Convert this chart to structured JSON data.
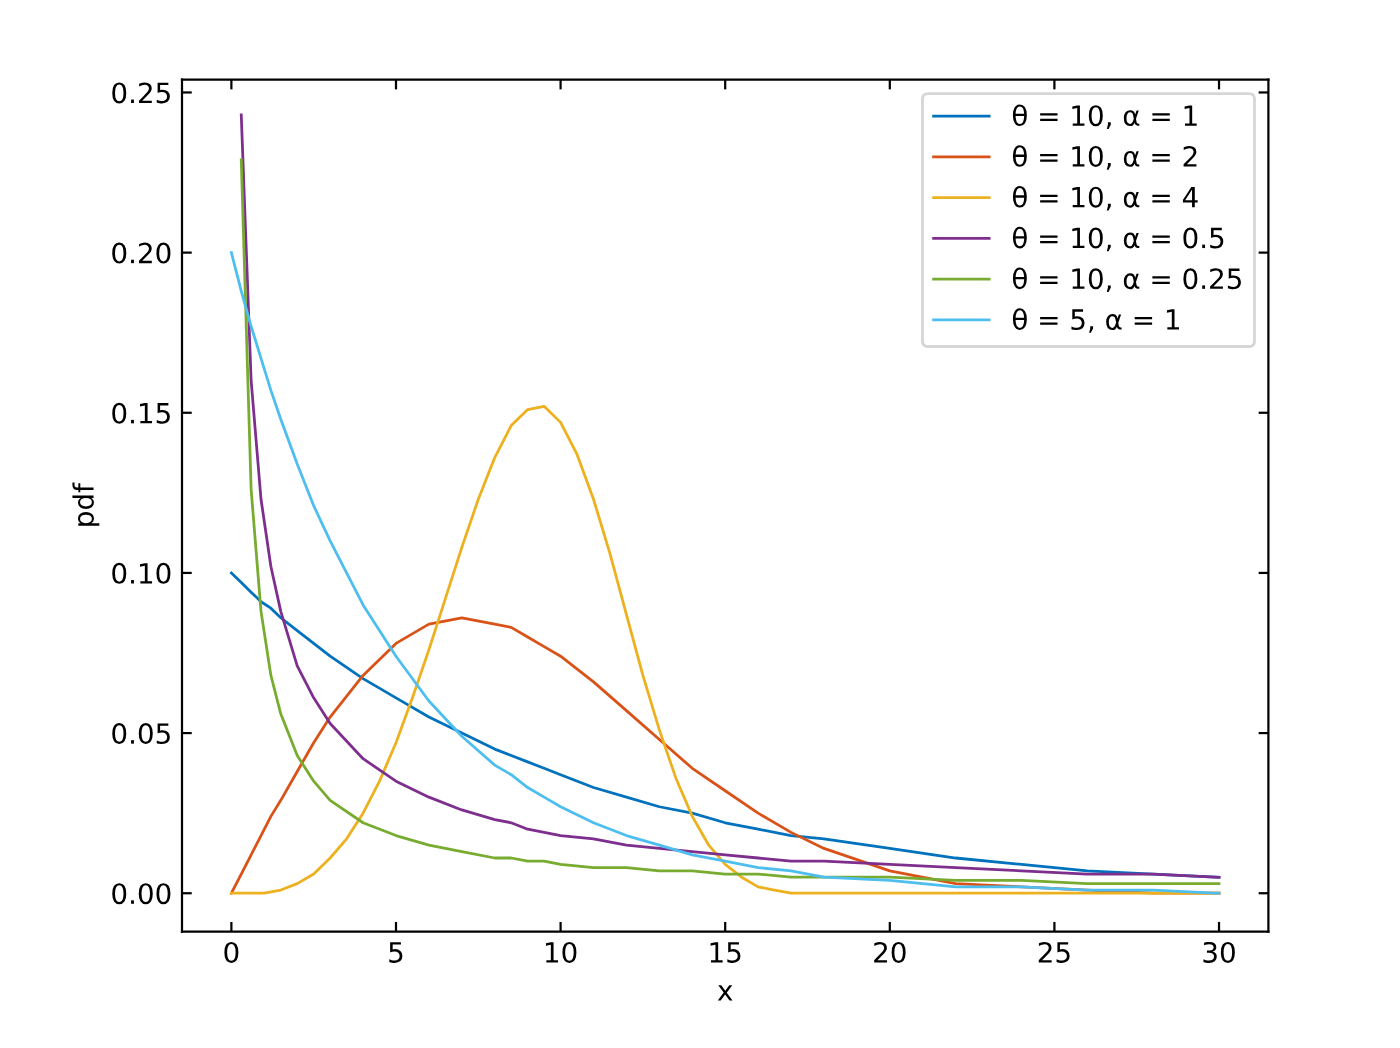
{
  "chart_data": {
    "type": "line",
    "xlabel": "x",
    "ylabel": "pdf",
    "x": [
      0,
      0.3,
      0.6,
      0.9,
      1.2,
      1.5,
      2,
      2.5,
      3,
      4,
      5,
      6,
      7,
      8,
      8.5,
      9,
      9.5,
      10,
      11,
      12,
      13,
      14,
      15,
      16,
      17,
      18,
      20,
      22,
      24,
      26,
      28,
      30
    ],
    "series": [
      {
        "name": "θ = 10, α = 1",
        "color": "#0072bd",
        "values": [
          0.1,
          0.097,
          0.094,
          0.091,
          0.089,
          0.086,
          0.082,
          0.078,
          0.074,
          0.067,
          0.061,
          0.055,
          0.05,
          0.045,
          0.043,
          0.041,
          0.039,
          0.037,
          0.033,
          0.03,
          0.027,
          0.025,
          0.022,
          0.02,
          0.018,
          0.017,
          0.014,
          0.011,
          0.009,
          0.007,
          0.006,
          0.005
        ]
      },
      {
        "name": "θ = 10, α = 2",
        "color": "#d95319",
        "values": [
          0.0,
          0.006,
          0.012,
          0.018,
          0.024,
          0.029,
          0.038,
          0.047,
          0.055,
          0.068,
          0.078,
          0.084,
          0.086,
          0.084,
          0.083,
          0.08,
          0.077,
          0.074,
          0.066,
          0.057,
          0.048,
          0.039,
          0.032,
          0.025,
          0.019,
          0.014,
          0.007,
          0.003,
          0.002,
          0.001,
          0.0,
          0.0
        ]
      },
      {
        "name": "θ = 10, α = 4",
        "color": "#edb120",
        "x": [
          0,
          0.5,
          1,
          1.5,
          2,
          2.5,
          3,
          3.5,
          4,
          4.5,
          5,
          5.5,
          6,
          6.5,
          7,
          7.5,
          8,
          8.5,
          9,
          9.5,
          10,
          10.5,
          11,
          11.5,
          12,
          12.5,
          13,
          13.5,
          14,
          14.5,
          15,
          15.5,
          16,
          16.5,
          17,
          18,
          20,
          22,
          24,
          26,
          28,
          30
        ],
        "values": [
          0.0,
          0.0,
          0.0,
          0.001,
          0.003,
          0.006,
          0.011,
          0.017,
          0.025,
          0.035,
          0.047,
          0.061,
          0.076,
          0.092,
          0.108,
          0.123,
          0.136,
          0.146,
          0.151,
          0.152,
          0.147,
          0.137,
          0.123,
          0.106,
          0.087,
          0.068,
          0.051,
          0.036,
          0.024,
          0.015,
          0.009,
          0.005,
          0.002,
          0.001,
          0.0,
          0.0,
          0.0,
          0.0,
          0.0,
          0.0,
          0.0,
          0.0
        ]
      },
      {
        "name": "θ = 10, α = 0.5",
        "color": "#7e2f8e",
        "values": [
          null,
          0.243,
          0.16,
          0.123,
          0.102,
          0.088,
          0.071,
          0.061,
          0.053,
          0.042,
          0.035,
          0.03,
          0.026,
          0.023,
          0.022,
          0.02,
          0.019,
          0.018,
          0.017,
          0.015,
          0.014,
          0.013,
          0.012,
          0.011,
          0.01,
          0.01,
          0.009,
          0.008,
          0.007,
          0.006,
          0.006,
          0.005
        ]
      },
      {
        "name": "θ = 10, α = 0.25",
        "color": "#77ac30",
        "values": [
          null,
          0.229,
          0.126,
          0.088,
          0.068,
          0.056,
          0.043,
          0.035,
          0.029,
          0.022,
          0.018,
          0.015,
          0.013,
          0.011,
          0.011,
          0.01,
          0.01,
          0.009,
          0.008,
          0.008,
          0.007,
          0.007,
          0.006,
          0.006,
          0.005,
          0.005,
          0.005,
          0.004,
          0.004,
          0.003,
          0.003,
          0.003
        ]
      },
      {
        "name": "θ = 5, α = 1",
        "color": "#4dbeee",
        "values": [
          0.2,
          0.188,
          0.177,
          0.167,
          0.157,
          0.148,
          0.134,
          0.121,
          0.11,
          0.09,
          0.074,
          0.06,
          0.049,
          0.04,
          0.037,
          0.033,
          0.03,
          0.027,
          0.022,
          0.018,
          0.015,
          0.012,
          0.01,
          0.008,
          0.007,
          0.005,
          0.004,
          0.002,
          0.002,
          0.001,
          0.001,
          0.0
        ]
      }
    ],
    "xlim": [
      -1.5,
      31.5
    ],
    "ylim": [
      -0.012,
      0.254
    ],
    "xticks": [
      0,
      5,
      10,
      15,
      20,
      25,
      30
    ],
    "yticks": [
      {
        "value": 0,
        "label": "0.00"
      },
      {
        "value": 0.05,
        "label": "0.05"
      },
      {
        "value": 0.1,
        "label": "0.10"
      },
      {
        "value": 0.15,
        "label": "0.15"
      },
      {
        "value": 0.2,
        "label": "0.20"
      },
      {
        "value": 0.25,
        "label": "0.25"
      }
    ],
    "legend": "top right"
  }
}
